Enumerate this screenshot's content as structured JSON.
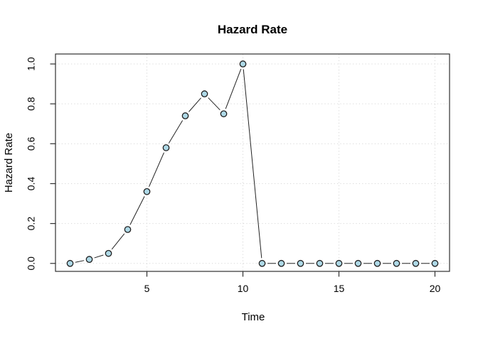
{
  "window": {
    "background": "#ffffff"
  },
  "chart_data": {
    "type": "line",
    "style": "r-base-type-b-points-with-gapped-segments",
    "title": "Hazard Rate",
    "xlabel": "Time",
    "ylabel": "Hazard Rate",
    "x": [
      1,
      2,
      3,
      4,
      5,
      6,
      7,
      8,
      9,
      10,
      11,
      12,
      13,
      14,
      15,
      16,
      17,
      18,
      19,
      20
    ],
    "values": [
      0.0,
      0.02,
      0.05,
      0.17,
      0.36,
      0.58,
      0.74,
      0.85,
      0.75,
      1.0,
      0.0,
      0.0,
      0.0,
      0.0,
      0.0,
      0.0,
      0.0,
      0.0,
      0.0,
      0.0
    ],
    "xlim": [
      0.24,
      20.76
    ],
    "ylim": [
      -0.04,
      1.05
    ],
    "xticks": [
      5,
      10,
      15,
      20
    ],
    "xtick_labels": [
      "5",
      "10",
      "15",
      "20"
    ],
    "yticks": [
      0.0,
      0.2,
      0.4,
      0.6,
      0.8,
      1.0
    ],
    "ytick_labels": [
      "0.0",
      "0.2",
      "0.4",
      "0.6",
      "0.8",
      "1.0"
    ],
    "grid": {
      "visible": true,
      "style": "dotted",
      "at_xticks": true,
      "at_yticks": true
    },
    "legend": "none",
    "colors": {
      "point_fill": "#add8e6",
      "point_stroke": "#1f1f1f",
      "line": "#222222",
      "grid": "#d8d8d8",
      "axis": "#2f2f2f",
      "text": "#000000",
      "background": "#ffffff"
    }
  }
}
